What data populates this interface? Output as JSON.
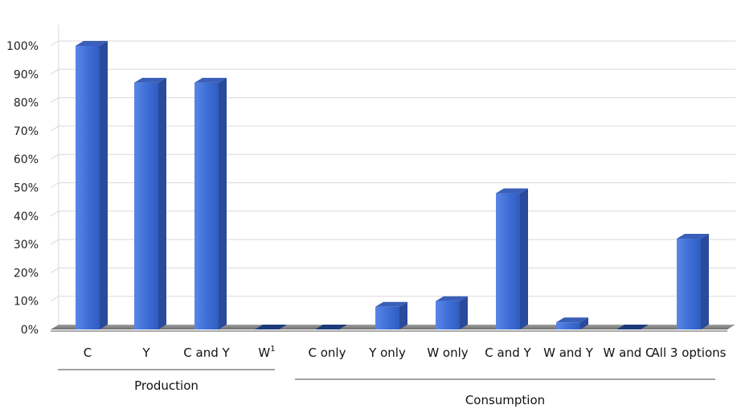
{
  "chart_data": {
    "type": "bar",
    "title": "",
    "xlabel": "",
    "ylabel": "",
    "ylim": [
      0,
      100
    ],
    "yticks": [
      "0%",
      "10%",
      "20%",
      "30%",
      "40%",
      "50%",
      "60%",
      "70%",
      "80%",
      "90%",
      "100%"
    ],
    "grid": true,
    "categories": [
      "C",
      "Y",
      "C and Y",
      "W",
      "C only",
      "Y only",
      "W only",
      "C and Y",
      "W and Y",
      "W and C",
      "All 3 options"
    ],
    "w_superscript": "1",
    "values": [
      100,
      87,
      87,
      0,
      0,
      8,
      10,
      48,
      2.5,
      0,
      32
    ],
    "groups": [
      {
        "label": "Production",
        "categories": [
          "C",
          "Y",
          "C and Y",
          "W"
        ]
      },
      {
        "label": "Consumption",
        "categories": [
          "C only",
          "Y only",
          "W only",
          "C and Y",
          "W and Y",
          "W and C",
          "All 3 options"
        ]
      }
    ],
    "colors": {
      "bar_front": "#3f6fd6",
      "bar_side": "#2a4a9c",
      "bar_top": "#3a5fb8",
      "grid": "#d9d9d9",
      "floor": "#8c8c8c"
    }
  }
}
